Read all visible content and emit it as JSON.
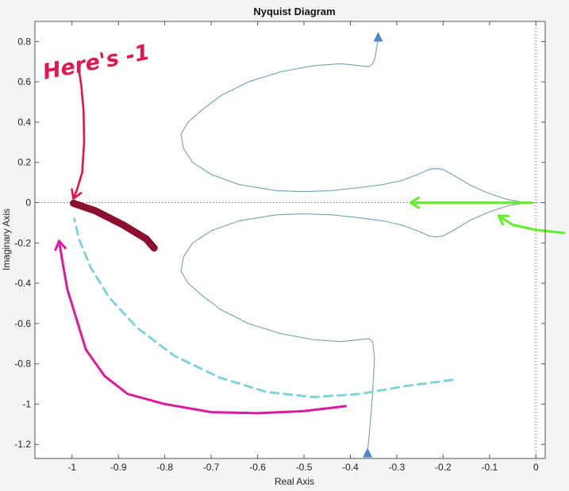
{
  "chart_data": {
    "type": "line",
    "title": "Nyquist Diagram",
    "xlabel": "Real Axis",
    "ylabel": "Imaginary Axis",
    "xlim": [
      -1.08,
      0.02
    ],
    "ylim": [
      -1.27,
      0.9
    ],
    "xticks": [
      -1,
      -0.9,
      -0.8,
      -0.7,
      -0.6,
      -0.5,
      -0.4,
      -0.3,
      -0.2,
      -0.1,
      0
    ],
    "xtick_labels": [
      "-1",
      "-0.9",
      "-0.8",
      "-0.7",
      "-0.6",
      "-0.5",
      "-0.4",
      "-0.3",
      "-0.2",
      "-0.1",
      "0"
    ],
    "yticks": [
      0.8,
      0.6,
      0.4,
      0.2,
      0,
      -0.2,
      -0.4,
      -0.6,
      -0.8,
      -1,
      -1.2
    ],
    "ytick_labels": [
      "0.8",
      "0.6",
      "0.4",
      "0.2",
      "0",
      "-0.2",
      "-0.4",
      "-0.6",
      "-0.8",
      "-1",
      "-1.2"
    ],
    "grid": false,
    "series": [
      {
        "color": "#6fa3ad",
        "x": [
          -0.34,
          -0.343,
          -0.348,
          -0.352,
          -0.36,
          -0.38,
          -0.42,
          -0.48,
          -0.55,
          -0.62,
          -0.68,
          -0.72,
          -0.75,
          -0.765,
          -0.76,
          -0.74,
          -0.7,
          -0.64,
          -0.56,
          -0.5,
          -0.44,
          -0.38,
          -0.33,
          -0.29,
          -0.255,
          -0.23,
          -0.215,
          -0.2,
          -0.18,
          -0.14,
          -0.1,
          -0.06,
          -0.03,
          0
        ],
        "y": [
          0.82,
          0.77,
          0.71,
          0.69,
          0.675,
          0.68,
          0.69,
          0.68,
          0.65,
          0.6,
          0.53,
          0.46,
          0.4,
          0.34,
          0.27,
          0.2,
          0.14,
          0.09,
          0.06,
          0.055,
          0.06,
          0.075,
          0.09,
          0.11,
          0.14,
          0.165,
          0.17,
          0.165,
          0.14,
          0.085,
          0.045,
          0.015,
          0.004,
          0
        ]
      },
      {
        "color": "#6fa3ad",
        "x": [
          0,
          -0.03,
          -0.06,
          -0.1,
          -0.14,
          -0.18,
          -0.2,
          -0.215,
          -0.23,
          -0.255,
          -0.29,
          -0.33,
          -0.38,
          -0.44,
          -0.5,
          -0.56,
          -0.64,
          -0.7,
          -0.74,
          -0.76,
          -0.765,
          -0.75,
          -0.72,
          -0.68,
          -0.62,
          -0.55,
          -0.48,
          -0.42,
          -0.38,
          -0.36,
          -0.352,
          -0.348,
          -0.352,
          -0.358,
          -0.363
        ],
        "y": [
          0,
          -0.004,
          -0.015,
          -0.045,
          -0.085,
          -0.14,
          -0.165,
          -0.17,
          -0.165,
          -0.14,
          -0.11,
          -0.09,
          -0.075,
          -0.06,
          -0.055,
          -0.06,
          -0.09,
          -0.14,
          -0.2,
          -0.27,
          -0.34,
          -0.4,
          -0.46,
          -0.53,
          -0.6,
          -0.65,
          -0.68,
          -0.69,
          -0.68,
          -0.675,
          -0.69,
          -0.77,
          -0.95,
          -1.12,
          -1.24
        ]
      }
    ],
    "arrowheads": [
      {
        "x": -0.34,
        "y": 0.82,
        "direction": "up",
        "color": "#4a86c8"
      },
      {
        "x": -0.363,
        "y": -1.245,
        "direction": "up",
        "color": "#4a86c8"
      }
    ],
    "reference_lines": [
      {
        "orientation": "horizontal",
        "value": 0,
        "style": "dotted"
      },
      {
        "orientation": "vertical",
        "value": 0,
        "style": "dotted"
      }
    ],
    "annotations": {
      "text": "Here's -1",
      "text_color": "#e0184e",
      "strokes": [
        {
          "kind": "arrow",
          "color": "#e8114c",
          "width": 2.6,
          "x": [
            -0.985,
            -0.98,
            -0.975,
            -0.974,
            -0.978,
            -0.99,
            -0.997
          ],
          "y": [
            0.66,
            0.58,
            0.45,
            0.3,
            0.15,
            0.06,
            0.02
          ]
        },
        {
          "kind": "line",
          "color": "#8c0f2e",
          "width": 9,
          "x": [
            -0.997,
            -0.95,
            -0.89,
            -0.84,
            -0.823
          ],
          "y": [
            -0.003,
            -0.04,
            -0.11,
            -0.18,
            -0.225
          ]
        },
        {
          "kind": "arrow",
          "color": "#e0189e",
          "width": 3,
          "x": [
            -0.41,
            -0.5,
            -0.6,
            -0.7,
            -0.8,
            -0.88,
            -0.93,
            -0.97,
            -0.99,
            -1.01,
            -1.02,
            -1.028
          ],
          "y": [
            -1.01,
            -1.035,
            -1.045,
            -1.04,
            -1.0,
            -0.95,
            -0.86,
            -0.73,
            -0.58,
            -0.43,
            -0.3,
            -0.19
          ]
        },
        {
          "kind": "dashed",
          "color": "#7fd4dc",
          "width": 3,
          "x": [
            -0.18,
            -0.28,
            -0.38,
            -0.48,
            -0.58,
            -0.68,
            -0.78,
            -0.86,
            -0.92,
            -0.96,
            -0.985,
            -0.995
          ],
          "y": [
            -0.88,
            -0.91,
            -0.95,
            -0.965,
            -0.94,
            -0.87,
            -0.76,
            -0.62,
            -0.47,
            -0.32,
            -0.18,
            -0.08
          ]
        },
        {
          "kind": "arrow",
          "color": "#66ee33",
          "width": 3.2,
          "x": [
            -0.01,
            -0.1,
            -0.2,
            -0.27
          ],
          "y": [
            0,
            0,
            0,
            0
          ]
        },
        {
          "kind": "arrow",
          "color": "#66ee33",
          "width": 3.2,
          "x": [
            0.06,
            0.0,
            -0.05,
            -0.08
          ],
          "y": [
            -0.15,
            -0.135,
            -0.11,
            -0.065
          ]
        }
      ]
    }
  }
}
